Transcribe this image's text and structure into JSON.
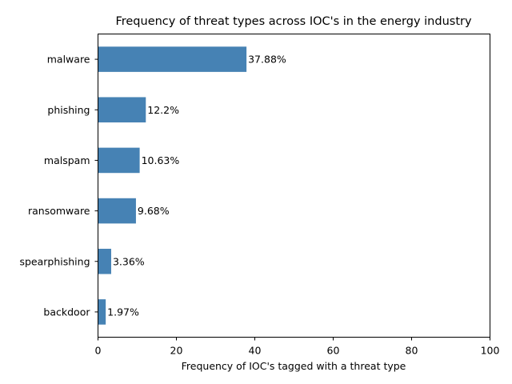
{
  "chart_data": {
    "type": "bar",
    "orientation": "horizontal",
    "title": "Frequency of threat types across IOC's in the energy industry",
    "xlabel": "Frequency of IOC's tagged with a threat type",
    "ylabel": "",
    "xlim": [
      0,
      100
    ],
    "xticks": [
      0,
      20,
      40,
      60,
      80,
      100
    ],
    "categories": [
      "malware",
      "phishing",
      "malspam",
      "ransomware",
      "spearphishing",
      "backdoor"
    ],
    "values": [
      37.88,
      12.2,
      10.63,
      9.68,
      3.36,
      1.97
    ],
    "data_labels": [
      "37.88%",
      "12.2%",
      "10.63%",
      "9.68%",
      "3.36%",
      "1.97%"
    ],
    "bar_color": "#4682b4",
    "grid": false,
    "legend": "none"
  }
}
